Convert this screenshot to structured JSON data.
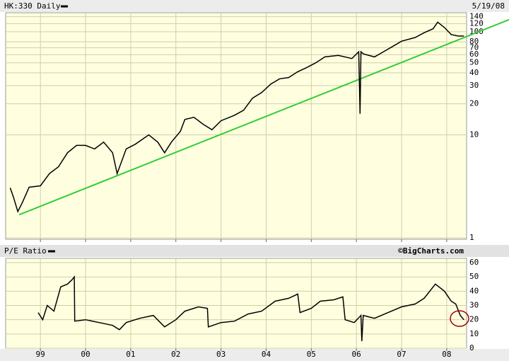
{
  "chart_data": [
    {
      "type": "line",
      "yscale": "log",
      "date_label": "5/19/08",
      "x": [
        1998.33,
        1998.4,
        1998.5,
        1998.6,
        1998.75,
        1999.0,
        1999.2,
        1999.4,
        1999.6,
        1999.8,
        2000.0,
        2000.2,
        2000.4,
        2000.6,
        2000.7,
        2000.9,
        2001.1,
        2001.4,
        2001.6,
        2001.75,
        2001.9,
        2002.1,
        2002.2,
        2002.4,
        2002.6,
        2002.8,
        2003.0,
        2003.3,
        2003.5,
        2003.7,
        2003.9,
        2004.1,
        2004.3,
        2004.5,
        2004.7,
        2004.9,
        2005.1,
        2005.3,
        2005.6,
        2005.9,
        2006.05,
        2006.08,
        2006.1,
        2006.15,
        2006.4,
        2006.6,
        2006.8,
        2007.0,
        2007.3,
        2007.5,
        2007.7,
        2007.8,
        2007.95,
        2008.1,
        2008.25,
        2008.38
      ],
      "series": [
        {
          "name": "HK:330 Daily",
          "color": "#000000",
          "values": [
            3.06,
            2.5,
            1.8,
            2.2,
            3.1,
            3.2,
            4.2,
            4.9,
            6.7,
            7.9,
            7.9,
            7.3,
            8.5,
            6.7,
            4.2,
            7.3,
            8.1,
            10,
            8.5,
            6.7,
            8.5,
            10.8,
            14.1,
            14.8,
            12.7,
            11.2,
            13.7,
            15.5,
            17.3,
            22.7,
            25.7,
            31,
            35,
            36,
            41,
            45,
            50,
            57,
            59,
            55,
            64,
            16,
            64,
            61,
            57,
            64,
            72,
            81,
            88,
            98,
            107,
            124,
            110,
            94,
            91,
            91
          ]
        }
      ],
      "trendline": {
        "x": [
          1998.53,
          2009.38
        ],
        "values": [
          1.68,
          131
        ],
        "color": "#33cc33"
      },
      "xlim": [
        1998.23,
        2008.44
      ],
      "xticks": [
        1999,
        2000,
        2001,
        2002,
        2003,
        2004,
        2005,
        2006,
        2007,
        2008
      ],
      "ylim": [
        0.97,
        153
      ],
      "yticks": [
        1,
        10,
        20,
        30,
        40,
        50,
        60,
        70,
        80,
        100,
        120,
        140
      ],
      "grid": true
    },
    {
      "type": "line",
      "source": "©BigCharts.com",
      "x": [
        1998.95,
        1999.05,
        1999.15,
        1999.3,
        1999.45,
        1999.6,
        1999.7,
        1999.75,
        1999.76,
        2000.0,
        2000.3,
        2000.6,
        2000.75,
        2000.9,
        2001.2,
        2001.5,
        2001.75,
        2002.0,
        2002.2,
        2002.5,
        2002.7,
        2002.72,
        2003.0,
        2003.3,
        2003.6,
        2003.9,
        2004.2,
        2004.5,
        2004.7,
        2004.75,
        2005.0,
        2005.2,
        2005.5,
        2005.7,
        2005.75,
        2005.95,
        2006.1,
        2006.12,
        2006.15,
        2006.4,
        2006.7,
        2007.0,
        2007.3,
        2007.5,
        2007.75,
        2007.95,
        2008.1,
        2008.2,
        2008.3,
        2008.38
      ],
      "series": [
        {
          "name": "P/E Ratio",
          "color": "#000000",
          "values": [
            25,
            20,
            30,
            26,
            43,
            45,
            48,
            50,
            19,
            20,
            18,
            16,
            13,
            18,
            21,
            23,
            15,
            20,
            26,
            29,
            28,
            15,
            18,
            19,
            24,
            26,
            33,
            35,
            38,
            25,
            28,
            33,
            34,
            36,
            20,
            18,
            23,
            5,
            23,
            21,
            25,
            29,
            31,
            35,
            45,
            40,
            33,
            31,
            23,
            20
          ]
        }
      ],
      "xlim": [
        1998.23,
        2008.44
      ],
      "xticks": [
        {
          "value": 1999,
          "label": "99"
        },
        {
          "value": 2000,
          "label": "00"
        },
        {
          "value": 2001,
          "label": "01"
        },
        {
          "value": 2002,
          "label": "02"
        },
        {
          "value": 2003,
          "label": "03"
        },
        {
          "value": 2004,
          "label": "04"
        },
        {
          "value": 2005,
          "label": "05"
        },
        {
          "value": 2006,
          "label": "06"
        },
        {
          "value": 2007,
          "label": "07"
        },
        {
          "value": 2008,
          "label": "08"
        }
      ],
      "ylim": [
        0,
        63
      ],
      "yticks": [
        0,
        10,
        20,
        30,
        40,
        50,
        60
      ],
      "grid": true
    }
  ]
}
